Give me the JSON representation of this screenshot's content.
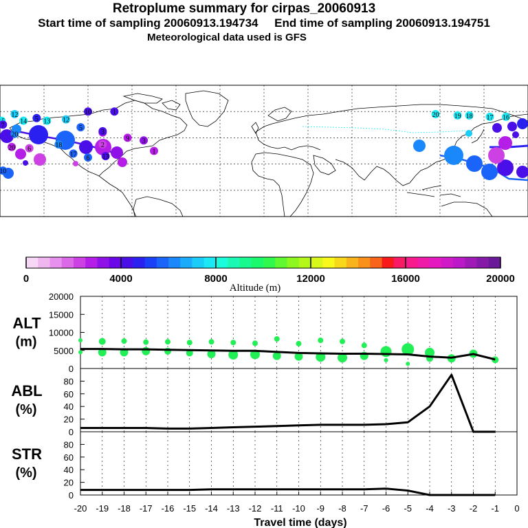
{
  "header": {
    "title": "Retroplume summary for cirpas_20060913",
    "start_label": "Start time of sampling 20060913.194734",
    "end_label": "End time of sampling 20060913.194751",
    "met_label": "Meteorological data used is GFS"
  },
  "colorbar": {
    "ticks": [
      "0",
      "4000",
      "8000",
      "12000",
      "16000",
      "20000"
    ],
    "tick_values": [
      0,
      4000,
      8000,
      12000,
      16000,
      20000
    ],
    "label": "Altitude (m)",
    "colors": [
      "#f6d8f6",
      "#f0b6f0",
      "#e890ee",
      "#dc6ae8",
      "#cc40e4",
      "#b41ee6",
      "#9010e8",
      "#6a06e8",
      "#4a0ee8",
      "#2a20f0",
      "#1a40f8",
      "#1a64fa",
      "#1a88fa",
      "#1aacfa",
      "#1accf8",
      "#1ae8f4",
      "#1afcdc",
      "#1af8b4",
      "#1af890",
      "#1af86c",
      "#30f84c",
      "#60f830",
      "#8cf820",
      "#b4f81a",
      "#d8f81a",
      "#f8f81a",
      "#f8d81a",
      "#f8b41a",
      "#f8901a",
      "#f8641a",
      "#f81a1a",
      "#f81a64",
      "#f81a8c",
      "#f01aa8",
      "#e41ac0",
      "#d01ac8",
      "#bc1ac8",
      "#a01ab8",
      "#861aa8",
      "#6a1a98"
    ]
  },
  "map": {
    "labels": [
      {
        "text": "20",
        "lon": 117,
        "lat": 68,
        "color": "#1ae8f4"
      },
      {
        "text": "19",
        "lon": 132,
        "lat": 67,
        "color": "#1ae8f4"
      },
      {
        "text": "18",
        "lon": 140,
        "lat": 67,
        "color": "#1ae8f4"
      },
      {
        "text": "17",
        "lon": 154,
        "lat": 66,
        "color": "#1ae8f4"
      },
      {
        "text": "16",
        "lon": 165,
        "lat": 66,
        "color": "#1ae8f4"
      },
      {
        "text": "15",
        "lon": 181,
        "lat": 63,
        "color": "#1ae8f4"
      },
      {
        "text": "14",
        "lon": 196,
        "lat": 63,
        "color": "#1ae8f4"
      },
      {
        "text": "13",
        "lon": 212,
        "lat": 63,
        "color": "#1ae8f4"
      },
      {
        "text": "12",
        "lon": 225,
        "lat": 64,
        "color": "#1accf8"
      },
      {
        "text": "20",
        "lon": 190,
        "lat": 53,
        "color": "#1a88fa"
      },
      {
        "text": "18",
        "lon": 220,
        "lat": 45,
        "color": "#1a88fa"
      },
      {
        "text": "17",
        "lon": 230,
        "lat": 38,
        "color": "#1a64fa"
      },
      {
        "text": "6",
        "lon": 240,
        "lat": 35,
        "color": "#1a64fa"
      },
      {
        "text": "13",
        "lon": 252,
        "lat": 36,
        "color": "#4a0ee8"
      },
      {
        "text": "2",
        "lon": 250,
        "lat": 45,
        "color": "#cc40e4"
      },
      {
        "text": "9",
        "lon": 250,
        "lat": 54,
        "color": "#b41ee6"
      },
      {
        "text": "10",
        "lon": 240,
        "lat": 70,
        "color": "#4a0ee8"
      },
      {
        "text": "1",
        "lon": 258,
        "lat": 70,
        "color": "#4a0ee8"
      },
      {
        "text": "7",
        "lon": -178,
        "lat": 60,
        "color": "#4a0ee8"
      },
      {
        "text": "12",
        "lon": -170,
        "lat": 68,
        "color": "#1accf8"
      },
      {
        "text": "20",
        "lon": -172,
        "lat": 43,
        "color": "#b41ee6"
      },
      {
        "text": "6",
        "lon": -160,
        "lat": 42,
        "color": "#cc40e4"
      },
      {
        "text": "10",
        "lon": -178,
        "lat": 25,
        "color": "#1a64fa"
      },
      {
        "text": "5",
        "lon": -155,
        "lat": 65,
        "color": "#2a20f0"
      },
      {
        "text": "5",
        "lon": -125,
        "lat": 58,
        "color": "#1a64fa"
      },
      {
        "text": "3",
        "lon": -110,
        "lat": 55,
        "color": "#4a0ee8"
      },
      {
        "text": "9",
        "lon": -93,
        "lat": 50,
        "color": "#b41ee6"
      },
      {
        "text": "3",
        "lon": -82,
        "lat": 48,
        "color": "#9010e8"
      },
      {
        "text": "1",
        "lon": -75,
        "lat": 40,
        "color": "#b41ee6"
      }
    ]
  },
  "chart_data": [
    {
      "type": "line",
      "panel_label": [
        "ALT",
        "(m)"
      ],
      "x": [
        -20,
        -19,
        -18,
        -17,
        -16,
        -15,
        -14,
        -13,
        -12,
        -11,
        -10,
        -9,
        -8,
        -7,
        -6,
        -5,
        -4,
        -3,
        -2,
        -1
      ],
      "series": [
        {
          "name": "mean altitude",
          "values": [
            5400,
            5400,
            5300,
            5300,
            5200,
            5100,
            5000,
            4900,
            4900,
            4600,
            4300,
            4200,
            4100,
            4100,
            4000,
            3900,
            3300,
            3000,
            4000,
            2500
          ]
        }
      ],
      "points": [
        {
          "x": -20,
          "y": 7800,
          "r": 3
        },
        {
          "x": -20,
          "y": 4500,
          "r": 3
        },
        {
          "x": -19,
          "y": 7500,
          "r": 5
        },
        {
          "x": -19,
          "y": 4500,
          "r": 6
        },
        {
          "x": -18,
          "y": 7600,
          "r": 4
        },
        {
          "x": -18,
          "y": 4500,
          "r": 6
        },
        {
          "x": -17,
          "y": 7300,
          "r": 4
        },
        {
          "x": -17,
          "y": 4800,
          "r": 6
        },
        {
          "x": -16,
          "y": 7400,
          "r": 4
        },
        {
          "x": -16,
          "y": 4800,
          "r": 5
        },
        {
          "x": -15,
          "y": 7200,
          "r": 4
        },
        {
          "x": -15,
          "y": 4300,
          "r": 5
        },
        {
          "x": -14,
          "y": 7400,
          "r": 4
        },
        {
          "x": -14,
          "y": 4000,
          "r": 6
        },
        {
          "x": -13,
          "y": 7200,
          "r": 4
        },
        {
          "x": -13,
          "y": 3800,
          "r": 7
        },
        {
          "x": -12,
          "y": 7000,
          "r": 4
        },
        {
          "x": -12,
          "y": 3900,
          "r": 7
        },
        {
          "x": -11,
          "y": 8200,
          "r": 4
        },
        {
          "x": -11,
          "y": 3500,
          "r": 6
        },
        {
          "x": -10,
          "y": 6900,
          "r": 4
        },
        {
          "x": -10,
          "y": 3300,
          "r": 6
        },
        {
          "x": -9,
          "y": 7800,
          "r": 4
        },
        {
          "x": -9,
          "y": 3200,
          "r": 7
        },
        {
          "x": -8,
          "y": 7500,
          "r": 4
        },
        {
          "x": -8,
          "y": 3000,
          "r": 7
        },
        {
          "x": -7,
          "y": 6400,
          "r": 4
        },
        {
          "x": -7,
          "y": 3500,
          "r": 6
        },
        {
          "x": -6,
          "y": 4700,
          "r": 8
        },
        {
          "x": -6,
          "y": 2300,
          "r": 3
        },
        {
          "x": -5,
          "y": 5300,
          "r": 9
        },
        {
          "x": -5,
          "y": 1300,
          "r": 3
        },
        {
          "x": -4,
          "y": 4400,
          "r": 7
        },
        {
          "x": -4,
          "y": 2800,
          "r": 5
        },
        {
          "x": -3,
          "y": 2800,
          "r": 6
        },
        {
          "x": -2,
          "y": 4100,
          "r": 6
        },
        {
          "x": -1,
          "y": 2400,
          "r": 5
        }
      ],
      "ylim": [
        0,
        20000
      ],
      "yticks": [
        "0",
        "5000",
        "10000",
        "15000",
        "20000"
      ]
    },
    {
      "type": "line",
      "panel_label": [
        "ABL",
        "(%)"
      ],
      "x": [
        -20,
        -19,
        -18,
        -17,
        -16,
        -15,
        -14,
        -13,
        -12,
        -11,
        -10,
        -9,
        -8,
        -7,
        -6,
        -5,
        -4,
        -3,
        -2,
        -1
      ],
      "series": [
        {
          "name": "ABL fraction",
          "values": [
            6,
            6,
            6,
            6,
            5,
            5,
            6,
            7,
            8,
            9,
            10,
            11,
            11,
            11,
            12,
            15,
            40,
            90,
            0,
            0
          ]
        }
      ],
      "ylim": [
        0,
        100
      ],
      "yticks": [
        "0",
        "20",
        "40",
        "60",
        "80"
      ]
    },
    {
      "type": "line",
      "panel_label": [
        "STR",
        "(%)"
      ],
      "x": [
        -20,
        -19,
        -18,
        -17,
        -16,
        -15,
        -14,
        -13,
        -12,
        -11,
        -10,
        -9,
        -8,
        -7,
        -6,
        -5,
        -4,
        -3,
        -2,
        -1
      ],
      "series": [
        {
          "name": "stratospheric fraction",
          "values": [
            8,
            8,
            8,
            8,
            8,
            8,
            9,
            9,
            9,
            9,
            9,
            9,
            9,
            9,
            10,
            7,
            0,
            0,
            0,
            0
          ]
        }
      ],
      "ylim": [
        0,
        100
      ],
      "yticks": [
        "0",
        "20",
        "40",
        "60",
        "80"
      ],
      "xlabel": "Travel time (days)",
      "xticks": [
        "-20",
        "-19",
        "-18",
        "-17",
        "-16",
        "-15",
        "-14",
        "-13",
        "-12",
        "-11",
        "-10",
        "-9",
        "-8",
        "-7",
        "-6",
        "-5",
        "-4",
        "-3",
        "-2",
        "-1",
        "0"
      ]
    }
  ]
}
